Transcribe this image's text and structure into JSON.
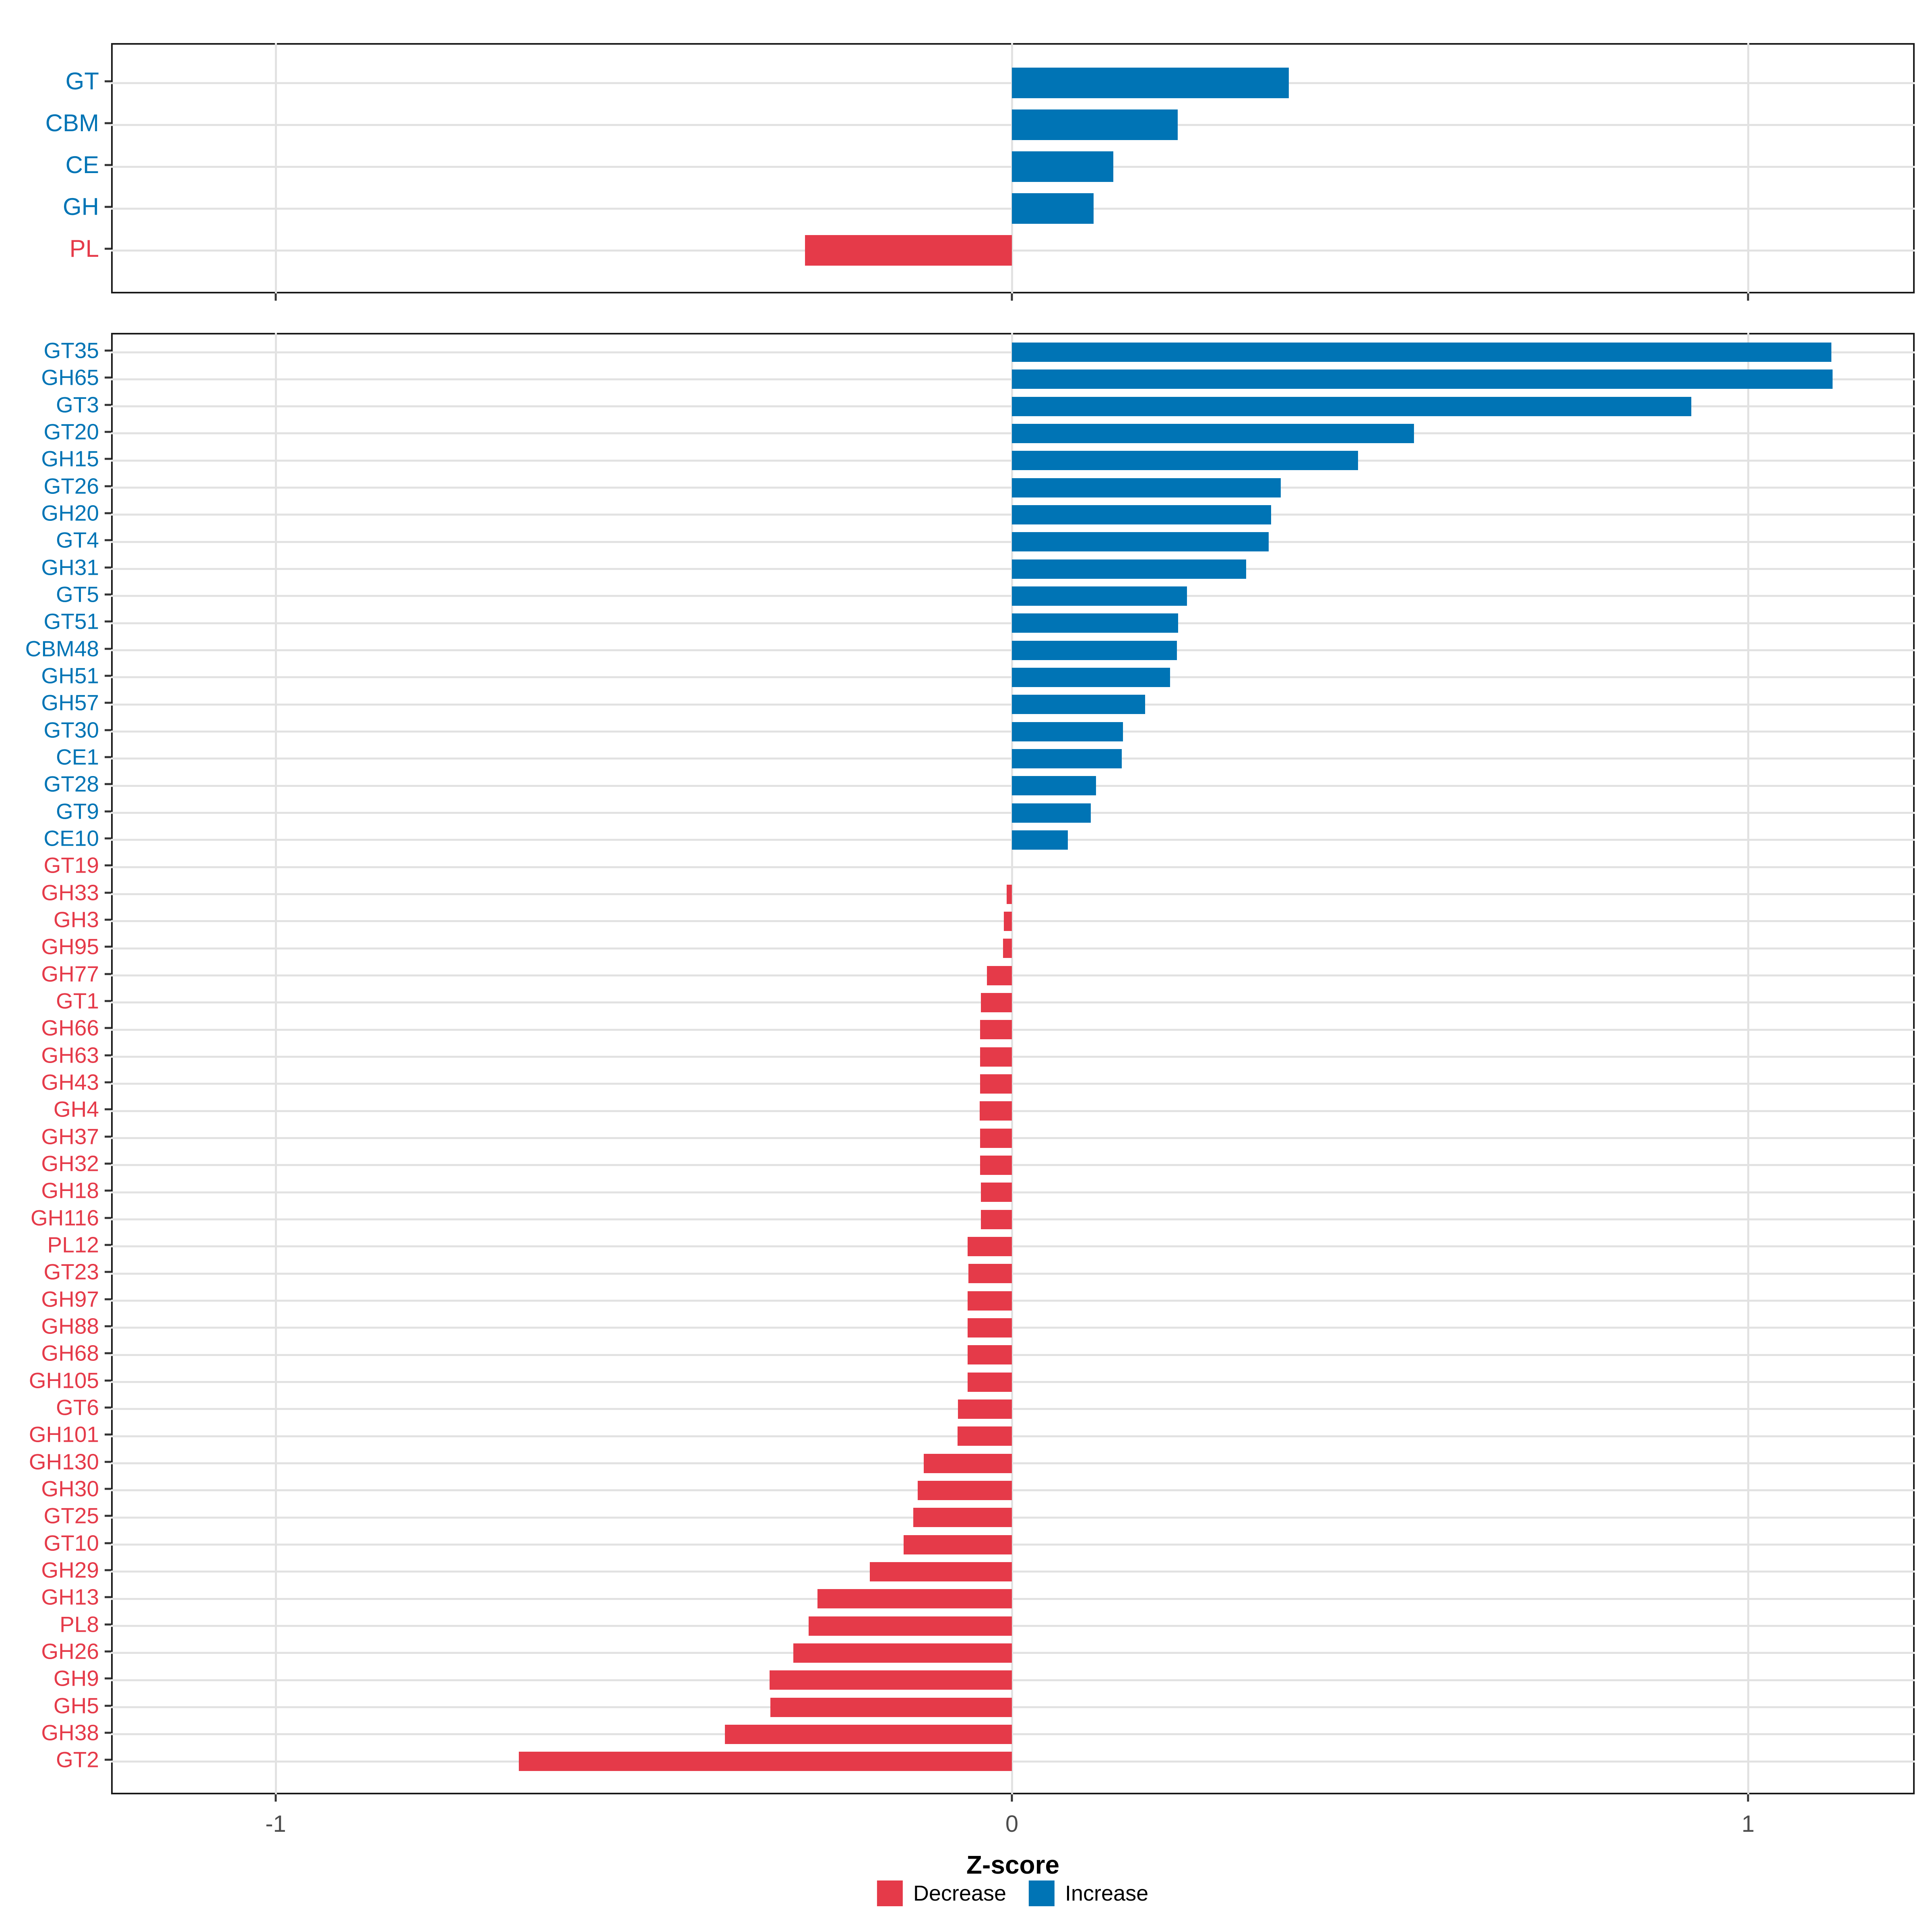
{
  "axis": {
    "label": "Z-score",
    "tick_labels": [
      "-1",
      "0",
      "1"
    ],
    "tick_values": [
      -1,
      0,
      1
    ]
  },
  "legend": {
    "items": [
      {
        "label": "Decrease",
        "color": "#e53a49"
      },
      {
        "label": "Increase",
        "color": "#0074b5"
      }
    ]
  },
  "colors": {
    "increase": "#0074b5",
    "decrease": "#e53a49",
    "grid": "#e2e2e2",
    "axis_text": "#4d4d4d",
    "tick": "#333333",
    "border": "#1a1a1a"
  },
  "chart_data": [
    {
      "id": "class-panel",
      "type": "bar",
      "orientation": "horizontal",
      "xlabel": "Z-score",
      "xlim": [
        -1.23,
        1.23
      ],
      "grid": true,
      "categories": [
        "GT",
        "CBM",
        "CE",
        "GH",
        "PL"
      ],
      "values": [
        0.376,
        0.225,
        0.138,
        0.111,
        -0.281
      ],
      "directions": [
        "Increase",
        "Increase",
        "Increase",
        "Increase",
        "Decrease"
      ]
    },
    {
      "id": "family-panel",
      "type": "bar",
      "orientation": "horizontal",
      "xlabel": "Z-score",
      "xlim": [
        -1.23,
        1.23
      ],
      "grid": true,
      "categories": [
        "GT35",
        "GH65",
        "GT3",
        "GT20",
        "GH15",
        "GT26",
        "GH20",
        "GT4",
        "GH31",
        "GT5",
        "GT51",
        "CBM48",
        "GH51",
        "GH57",
        "GT30",
        "CE1",
        "GT28",
        "GT9",
        "CE10",
        "GT19",
        "GH33",
        "GH3",
        "GH95",
        "GH77",
        "GT1",
        "GH66",
        "GH63",
        "GH43",
        "GH4",
        "GH37",
        "GH32",
        "GH18",
        "GH116",
        "PL12",
        "GT23",
        "GH97",
        "GH88",
        "GH68",
        "GH105",
        "GT6",
        "GH101",
        "GH130",
        "GH30",
        "GT25",
        "GT10",
        "GH29",
        "GH13",
        "PL8",
        "GH26",
        "GH9",
        "GH5",
        "GH38",
        "GT2"
      ],
      "values": [
        1.113,
        1.115,
        0.923,
        0.546,
        0.47,
        0.365,
        0.352,
        0.349,
        0.318,
        0.238,
        0.226,
        0.224,
        0.215,
        0.181,
        0.151,
        0.149,
        0.114,
        0.107,
        0.076,
        0,
        -0.007,
        -0.011,
        -0.012,
        -0.034,
        -0.042,
        -0.043,
        -0.043,
        -0.043,
        -0.044,
        -0.043,
        -0.043,
        -0.042,
        -0.042,
        -0.06,
        -0.059,
        -0.06,
        -0.06,
        -0.06,
        -0.06,
        -0.073,
        -0.074,
        -0.12,
        -0.128,
        -0.134,
        -0.147,
        -0.193,
        -0.264,
        -0.276,
        -0.297,
        -0.329,
        -0.328,
        -0.39,
        -0.67
      ],
      "directions": [
        "Increase",
        "Increase",
        "Increase",
        "Increase",
        "Increase",
        "Increase",
        "Increase",
        "Increase",
        "Increase",
        "Increase",
        "Increase",
        "Increase",
        "Increase",
        "Increase",
        "Increase",
        "Increase",
        "Increase",
        "Increase",
        "Increase",
        "Decrease",
        "Decrease",
        "Decrease",
        "Decrease",
        "Decrease",
        "Decrease",
        "Decrease",
        "Decrease",
        "Decrease",
        "Decrease",
        "Decrease",
        "Decrease",
        "Decrease",
        "Decrease",
        "Decrease",
        "Decrease",
        "Decrease",
        "Decrease",
        "Decrease",
        "Decrease",
        "Decrease",
        "Decrease",
        "Decrease",
        "Decrease",
        "Decrease",
        "Decrease",
        "Decrease",
        "Decrease",
        "Decrease",
        "Decrease",
        "Decrease",
        "Decrease",
        "Decrease",
        "Decrease"
      ]
    }
  ]
}
